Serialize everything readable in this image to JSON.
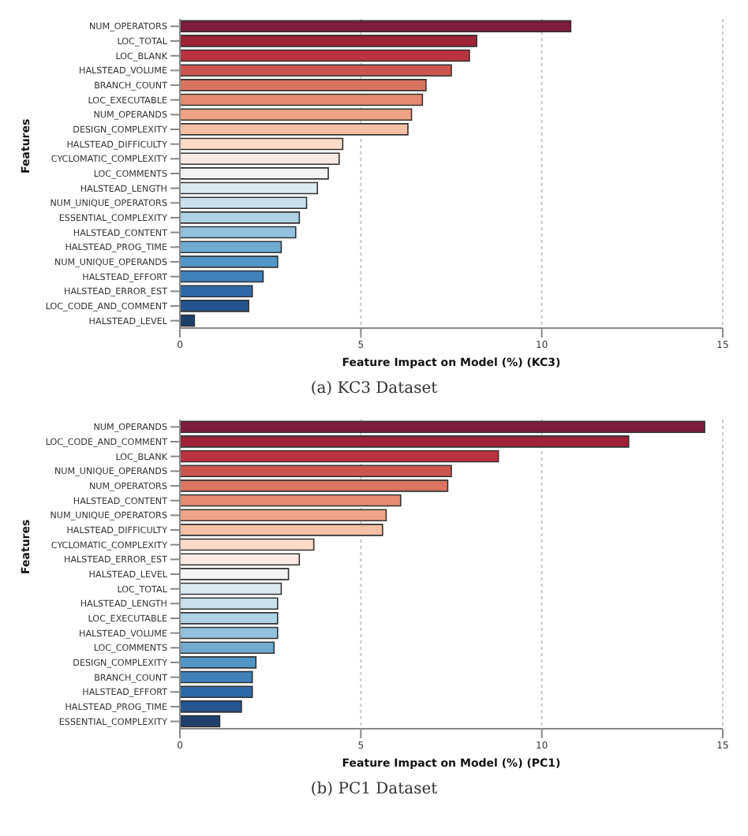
{
  "chart_data": [
    {
      "type": "bar",
      "orientation": "horizontal",
      "xlabel": "Feature Impact on Model (%) (KC3)",
      "ylabel": "Features",
      "annotations": [
        "(a) KC3 Dataset"
      ],
      "grid": "x",
      "xlim": [
        0,
        15
      ],
      "xticks": [
        0,
        5,
        10,
        15
      ],
      "categories": [
        "NUM_OPERATORS",
        "LOC_TOTAL",
        "LOC_BLANK",
        "HALSTEAD_VOLUME",
        "BRANCH_COUNT",
        "LOC_EXECUTABLE",
        "NUM_OPERANDS",
        "DESIGN_COMPLEXITY",
        "HALSTEAD_DIFFICULTY",
        "CYCLOMATIC_COMPLEXITY",
        "LOC_COMMENTS",
        "HALSTEAD_LENGTH",
        "NUM_UNIQUE_OPERATORS",
        "ESSENTIAL_COMPLEXITY",
        "HALSTEAD_CONTENT",
        "HALSTEAD_PROG_TIME",
        "NUM_UNIQUE_OPERANDS",
        "HALSTEAD_EFFORT",
        "HALSTEAD_ERROR_EST",
        "LOC_CODE_AND_COMMENT",
        "HALSTEAD_LEVEL"
      ],
      "values": [
        10.8,
        8.2,
        8.0,
        7.5,
        6.8,
        6.7,
        6.4,
        6.3,
        4.5,
        4.4,
        4.1,
        3.8,
        3.5,
        3.3,
        3.2,
        2.8,
        2.7,
        2.3,
        2.0,
        1.9,
        0.4
      ],
      "colors": [
        "#7b1c3a",
        "#9e2238",
        "#bb3243",
        "#cc5552",
        "#da7461",
        "#e58b70",
        "#eea487",
        "#f5c0a6",
        "#fbdccb",
        "#f9ebe4",
        "#f3f3f3",
        "#dde9f1",
        "#c9dfec",
        "#aed1e4",
        "#92c1dc",
        "#6fabd2",
        "#5296c6",
        "#3f80b9",
        "#2f6aa8",
        "#24558f",
        "#1e3f6b"
      ]
    },
    {
      "type": "bar",
      "orientation": "horizontal",
      "xlabel": "Feature Impact on Model (%) (PC1)",
      "ylabel": "Features",
      "annotations": [
        "(b) PC1 Dataset"
      ],
      "grid": "x",
      "xlim": [
        0,
        15
      ],
      "xticks": [
        0,
        5,
        10,
        15
      ],
      "categories": [
        "NUM_OPERANDS",
        "LOC_CODE_AND_COMMENT",
        "LOC_BLANK",
        "NUM_UNIQUE_OPERANDS",
        "NUM_OPERATORS",
        "HALSTEAD_CONTENT",
        "NUM_UNIQUE_OPERATORS",
        "HALSTEAD_DIFFICULTY",
        "CYCLOMATIC_COMPLEXITY",
        "HALSTEAD_ERROR_EST",
        "HALSTEAD_LEVEL",
        "LOC_TOTAL",
        "HALSTEAD_LENGTH",
        "LOC_EXECUTABLE",
        "HALSTEAD_VOLUME",
        "LOC_COMMENTS",
        "DESIGN_COMPLEXITY",
        "BRANCH_COUNT",
        "HALSTEAD_EFFORT",
        "HALSTEAD_PROG_TIME",
        "ESSENTIAL_COMPLEXITY"
      ],
      "values": [
        14.5,
        12.4,
        8.8,
        7.5,
        7.4,
        6.1,
        5.7,
        5.6,
        3.7,
        3.3,
        3.0,
        2.8,
        2.7,
        2.7,
        2.7,
        2.6,
        2.1,
        2.0,
        2.0,
        1.7,
        1.1
      ],
      "colors": [
        "#7b1c3a",
        "#9e2238",
        "#bb3243",
        "#cc5552",
        "#da7461",
        "#e58b70",
        "#eea487",
        "#f5c0a6",
        "#fbdccb",
        "#f9ebe4",
        "#f3f3f3",
        "#dde9f1",
        "#c9dfec",
        "#aed1e4",
        "#92c1dc",
        "#6fabd2",
        "#5296c6",
        "#3f80b9",
        "#2f6aa8",
        "#24558f",
        "#1e3f6b"
      ]
    }
  ]
}
